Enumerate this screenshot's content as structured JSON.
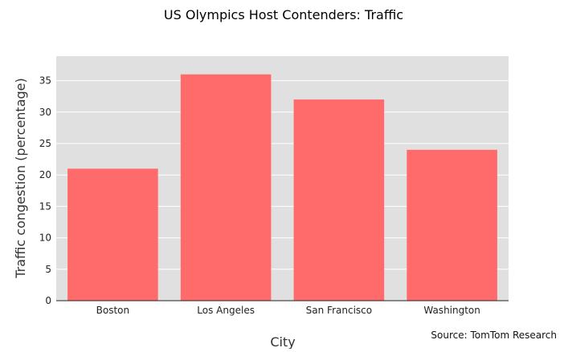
{
  "chart_data": {
    "type": "bar",
    "title": "US Olympics Host Contenders: Traffic",
    "xlabel": "City",
    "ylabel": "Traffic congestion (percentage)",
    "categories": [
      "Boston",
      "Los Angeles",
      "San Francisco",
      "Washington"
    ],
    "values": [
      21,
      36,
      32,
      24
    ],
    "ylim": [
      0,
      38.9
    ],
    "yticks": [
      0,
      5,
      10,
      15,
      20,
      25,
      30,
      35
    ],
    "grid": true,
    "bar_color": "#ff6b6b",
    "plot_background": "#e0e0e0",
    "source": "Source: TomTom Research"
  }
}
